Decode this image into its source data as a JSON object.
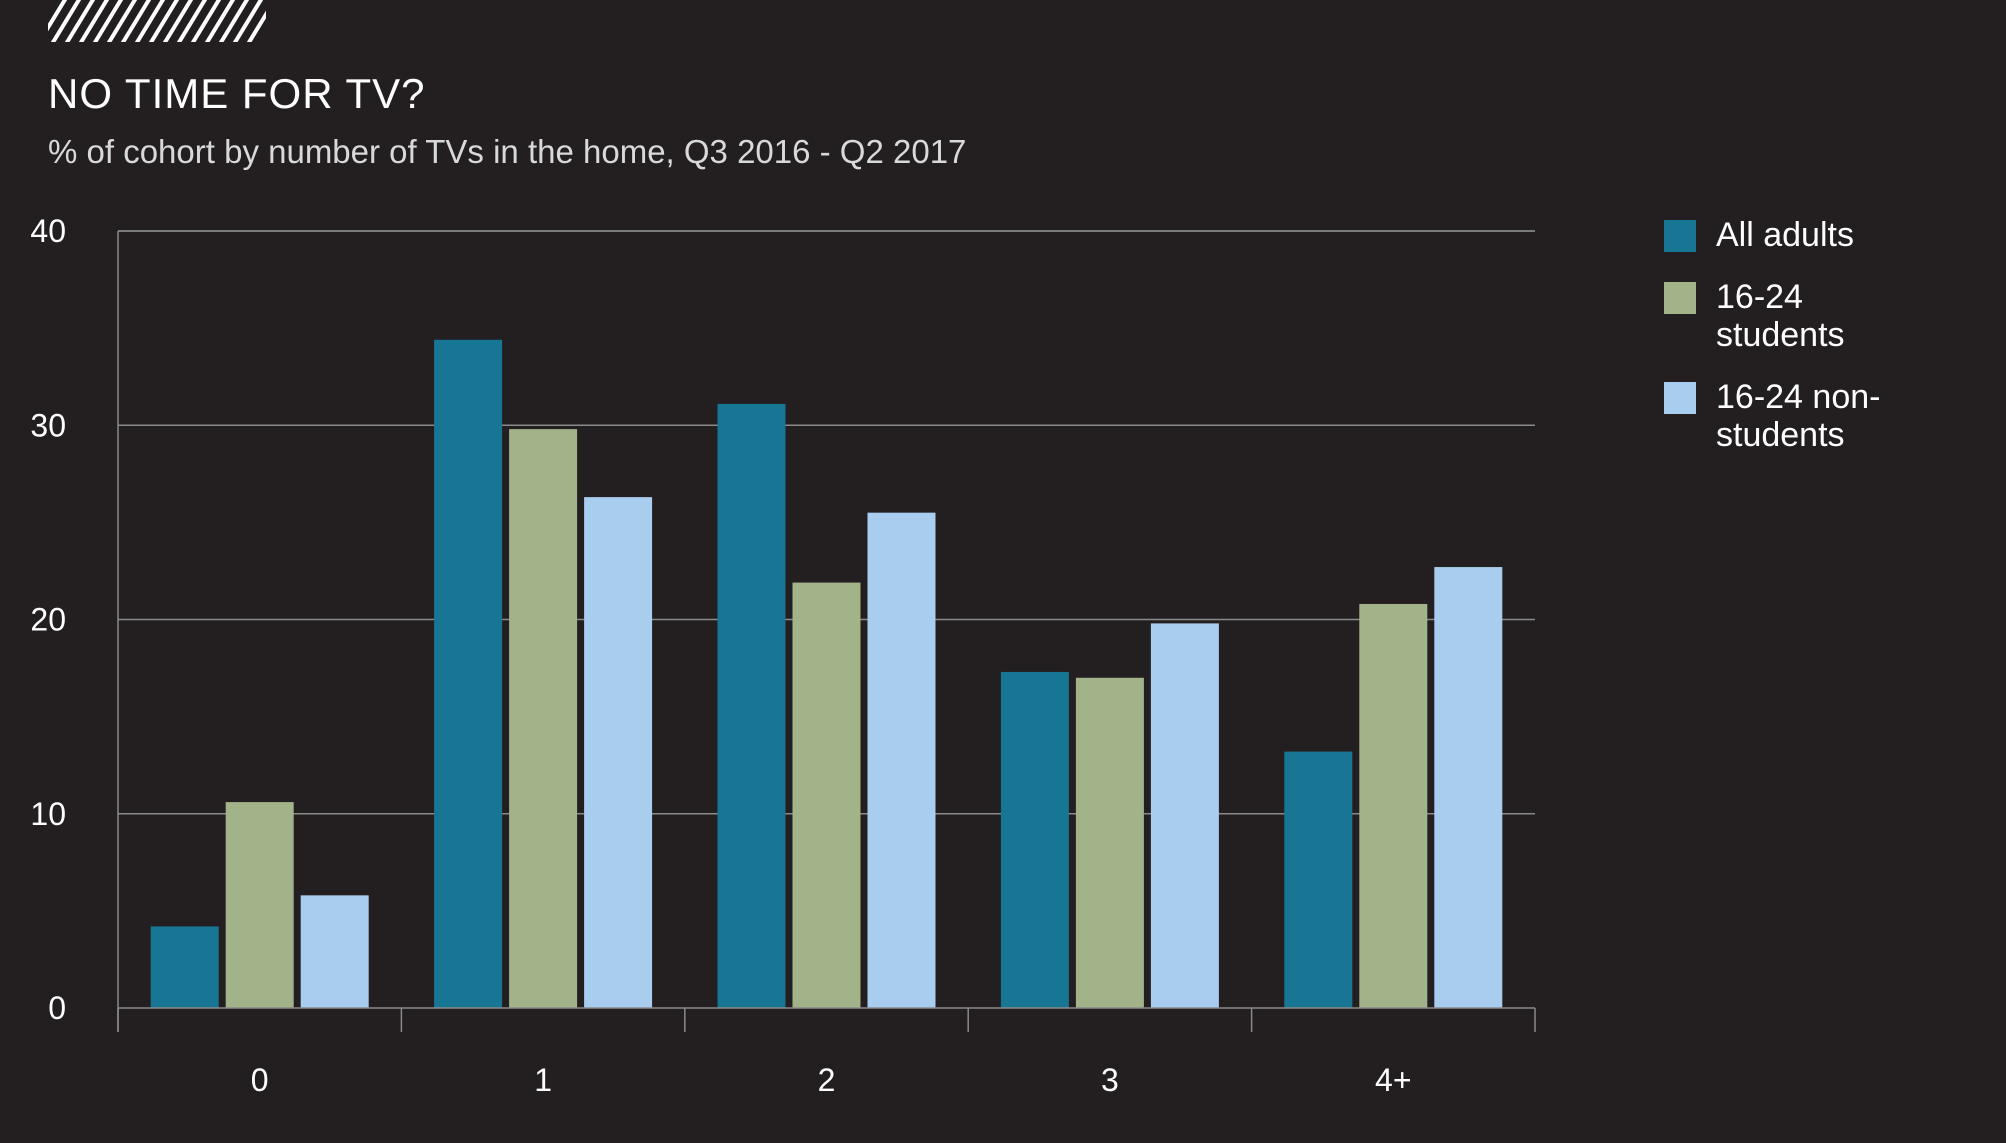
{
  "chart_data": {
    "type": "bar",
    "title": "NO TIME FOR TV?",
    "subtitle": "% of cohort by number of TVs in the home, Q3 2016 - Q2 2017",
    "xlabel": "",
    "ylabel": "",
    "categories": [
      "0",
      "1",
      "2",
      "3",
      "4+"
    ],
    "ylim": [
      0,
      40
    ],
    "yticks": [
      "0",
      "10",
      "20",
      "30",
      "40"
    ],
    "grid": true,
    "legend_position": "right",
    "series": [
      {
        "name": "All adults",
        "color": "#177694",
        "values": [
          4.2,
          34.4,
          31.1,
          17.3,
          13.2
        ]
      },
      {
        "name": "16-24 students",
        "color": "#a2b38a",
        "values": [
          10.6,
          29.8,
          21.9,
          17.0,
          20.8
        ]
      },
      {
        "name": "16-24 non-students",
        "color": "#a8cdef",
        "values": [
          5.8,
          26.3,
          25.5,
          19.8,
          22.7
        ]
      }
    ]
  },
  "legend": {
    "items": [
      {
        "label": "All adults",
        "color": "#177694"
      },
      {
        "label": "16-24 students",
        "color": "#a2b38a"
      },
      {
        "label": "16-24 non-students",
        "color": "#a8cdef"
      }
    ]
  }
}
